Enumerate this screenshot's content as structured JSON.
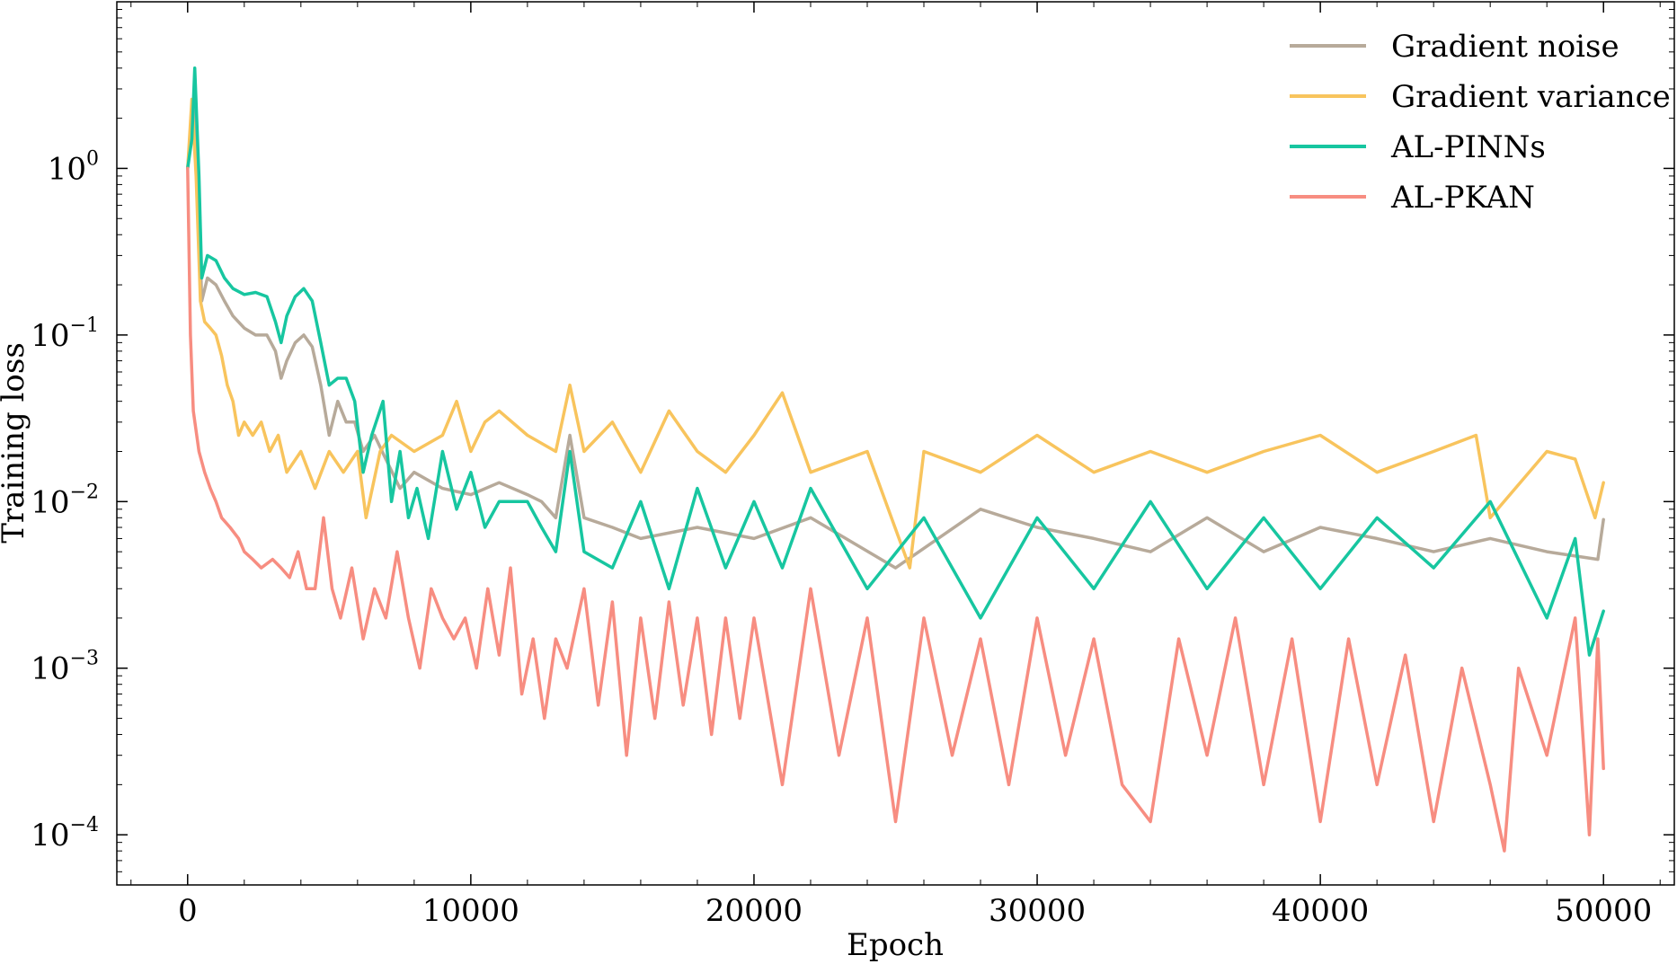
{
  "chart_data": {
    "type": "line",
    "title": "",
    "xlabel": "Epoch",
    "ylabel": "Training loss",
    "xlim": [
      -2500,
      52500
    ],
    "ylim": [
      5e-05,
      10
    ],
    "yscale": "log",
    "grid": false,
    "legend_position": "top-right",
    "x_ticks": [
      0,
      10000,
      20000,
      30000,
      40000,
      50000
    ],
    "x_tick_labels": [
      "0",
      "10000",
      "20000",
      "30000",
      "40000",
      "50000"
    ],
    "y_ticks": [
      1,
      0.1,
      0.01,
      0.001,
      0.0001
    ],
    "y_tick_labels": [
      {
        "base": "10",
        "exp": "0"
      },
      {
        "base": "10",
        "exp": "−1"
      },
      {
        "base": "10",
        "exp": "−2"
      },
      {
        "base": "10",
        "exp": "−3"
      },
      {
        "base": "10",
        "exp": "−4"
      }
    ],
    "series": [
      {
        "name": "Gradient noise",
        "color": "#b7aa9a",
        "points": [
          [
            0,
            1.0
          ],
          [
            200,
            2.4
          ],
          [
            350,
            1.0
          ],
          [
            500,
            0.16
          ],
          [
            700,
            0.22
          ],
          [
            1000,
            0.2
          ],
          [
            1300,
            0.16
          ],
          [
            1600,
            0.13
          ],
          [
            2000,
            0.11
          ],
          [
            2400,
            0.1
          ],
          [
            2800,
            0.1
          ],
          [
            3100,
            0.08
          ],
          [
            3300,
            0.055
          ],
          [
            3500,
            0.07
          ],
          [
            3800,
            0.09
          ],
          [
            4100,
            0.1
          ],
          [
            4400,
            0.085
          ],
          [
            4700,
            0.05
          ],
          [
            5000,
            0.025
          ],
          [
            5300,
            0.04
          ],
          [
            5600,
            0.03
          ],
          [
            5900,
            0.03
          ],
          [
            6200,
            0.02
          ],
          [
            6600,
            0.025
          ],
          [
            7000,
            0.018
          ],
          [
            7500,
            0.012
          ],
          [
            8000,
            0.015
          ],
          [
            9000,
            0.012
          ],
          [
            10000,
            0.011
          ],
          [
            11000,
            0.013
          ],
          [
            12000,
            0.011
          ],
          [
            12500,
            0.01
          ],
          [
            13000,
            0.008
          ],
          [
            13500,
            0.025
          ],
          [
            14000,
            0.008
          ],
          [
            15000,
            0.007
          ],
          [
            16000,
            0.006
          ],
          [
            18000,
            0.007
          ],
          [
            20000,
            0.006
          ],
          [
            22000,
            0.008
          ],
          [
            25000,
            0.004
          ],
          [
            28000,
            0.009
          ],
          [
            30000,
            0.007
          ],
          [
            32000,
            0.006
          ],
          [
            34000,
            0.005
          ],
          [
            36000,
            0.008
          ],
          [
            38000,
            0.005
          ],
          [
            40000,
            0.007
          ],
          [
            42000,
            0.006
          ],
          [
            44000,
            0.005
          ],
          [
            46000,
            0.006
          ],
          [
            48000,
            0.005
          ],
          [
            49800,
            0.0045
          ],
          [
            50000,
            0.0078
          ]
        ]
      },
      {
        "name": "Gradient variance",
        "color": "#f8c45d",
        "points": [
          [
            0,
            1.0
          ],
          [
            150,
            2.6
          ],
          [
            300,
            0.9
          ],
          [
            450,
            0.16
          ],
          [
            600,
            0.12
          ],
          [
            800,
            0.11
          ],
          [
            1000,
            0.1
          ],
          [
            1200,
            0.075
          ],
          [
            1400,
            0.05
          ],
          [
            1600,
            0.04
          ],
          [
            1800,
            0.025
          ],
          [
            2000,
            0.03
          ],
          [
            2300,
            0.025
          ],
          [
            2600,
            0.03
          ],
          [
            2900,
            0.02
          ],
          [
            3200,
            0.025
          ],
          [
            3500,
            0.015
          ],
          [
            4000,
            0.02
          ],
          [
            4500,
            0.012
          ],
          [
            5000,
            0.02
          ],
          [
            5500,
            0.015
          ],
          [
            6000,
            0.02
          ],
          [
            6300,
            0.008
          ],
          [
            6800,
            0.02
          ],
          [
            7200,
            0.025
          ],
          [
            8000,
            0.02
          ],
          [
            9000,
            0.025
          ],
          [
            9500,
            0.04
          ],
          [
            10000,
            0.02
          ],
          [
            10500,
            0.03
          ],
          [
            11000,
            0.035
          ],
          [
            12000,
            0.025
          ],
          [
            13000,
            0.02
          ],
          [
            13500,
            0.05
          ],
          [
            14000,
            0.02
          ],
          [
            15000,
            0.03
          ],
          [
            16000,
            0.015
          ],
          [
            17000,
            0.035
          ],
          [
            18000,
            0.02
          ],
          [
            19000,
            0.015
          ],
          [
            20000,
            0.025
          ],
          [
            21000,
            0.045
          ],
          [
            22000,
            0.015
          ],
          [
            24000,
            0.02
          ],
          [
            25500,
            0.004
          ],
          [
            26000,
            0.02
          ],
          [
            28000,
            0.015
          ],
          [
            30000,
            0.025
          ],
          [
            32000,
            0.015
          ],
          [
            34000,
            0.02
          ],
          [
            36000,
            0.015
          ],
          [
            38000,
            0.02
          ],
          [
            40000,
            0.025
          ],
          [
            42000,
            0.015
          ],
          [
            44000,
            0.02
          ],
          [
            45500,
            0.025
          ],
          [
            46000,
            0.008
          ],
          [
            48000,
            0.02
          ],
          [
            49000,
            0.018
          ],
          [
            49700,
            0.008
          ],
          [
            50000,
            0.013
          ]
        ]
      },
      {
        "name": "AL-PINNs",
        "color": "#17c6a0",
        "points": [
          [
            0,
            1.0
          ],
          [
            150,
            1.5
          ],
          [
            250,
            4.0
          ],
          [
            400,
            0.9
          ],
          [
            500,
            0.22
          ],
          [
            700,
            0.3
          ],
          [
            1000,
            0.28
          ],
          [
            1300,
            0.22
          ],
          [
            1600,
            0.19
          ],
          [
            2000,
            0.175
          ],
          [
            2400,
            0.18
          ],
          [
            2800,
            0.17
          ],
          [
            3100,
            0.12
          ],
          [
            3300,
            0.09
          ],
          [
            3500,
            0.13
          ],
          [
            3800,
            0.17
          ],
          [
            4100,
            0.19
          ],
          [
            4400,
            0.16
          ],
          [
            4700,
            0.09
          ],
          [
            5000,
            0.05
          ],
          [
            5300,
            0.055
          ],
          [
            5600,
            0.055
          ],
          [
            5900,
            0.04
          ],
          [
            6200,
            0.015
          ],
          [
            6500,
            0.025
          ],
          [
            6900,
            0.04
          ],
          [
            7200,
            0.01
          ],
          [
            7500,
            0.02
          ],
          [
            7800,
            0.008
          ],
          [
            8100,
            0.012
          ],
          [
            8500,
            0.006
          ],
          [
            9000,
            0.02
          ],
          [
            9500,
            0.009
          ],
          [
            10000,
            0.015
          ],
          [
            10500,
            0.007
          ],
          [
            11000,
            0.01
          ],
          [
            12000,
            0.01
          ],
          [
            12500,
            0.007
          ],
          [
            13000,
            0.005
          ],
          [
            13500,
            0.02
          ],
          [
            14000,
            0.005
          ],
          [
            15000,
            0.004
          ],
          [
            16000,
            0.01
          ],
          [
            17000,
            0.003
          ],
          [
            18000,
            0.012
          ],
          [
            19000,
            0.004
          ],
          [
            20000,
            0.01
          ],
          [
            21000,
            0.004
          ],
          [
            22000,
            0.012
          ],
          [
            24000,
            0.003
          ],
          [
            26000,
            0.008
          ],
          [
            28000,
            0.002
          ],
          [
            30000,
            0.008
          ],
          [
            32000,
            0.003
          ],
          [
            34000,
            0.01
          ],
          [
            36000,
            0.003
          ],
          [
            38000,
            0.008
          ],
          [
            40000,
            0.003
          ],
          [
            42000,
            0.008
          ],
          [
            44000,
            0.004
          ],
          [
            46000,
            0.01
          ],
          [
            48000,
            0.002
          ],
          [
            49000,
            0.006
          ],
          [
            49500,
            0.0012
          ],
          [
            50000,
            0.0022
          ]
        ]
      },
      {
        "name": "AL-PKAN",
        "color": "#f78d81",
        "points": [
          [
            0,
            1.0
          ],
          [
            100,
            0.1
          ],
          [
            200,
            0.035
          ],
          [
            400,
            0.02
          ],
          [
            600,
            0.015
          ],
          [
            800,
            0.012
          ],
          [
            1000,
            0.01
          ],
          [
            1200,
            0.008
          ],
          [
            1500,
            0.007
          ],
          [
            1800,
            0.006
          ],
          [
            2000,
            0.005
          ],
          [
            2300,
            0.0045
          ],
          [
            2600,
            0.004
          ],
          [
            3000,
            0.0045
          ],
          [
            3300,
            0.004
          ],
          [
            3600,
            0.0035
          ],
          [
            3900,
            0.005
          ],
          [
            4200,
            0.003
          ],
          [
            4500,
            0.003
          ],
          [
            4800,
            0.008
          ],
          [
            5100,
            0.003
          ],
          [
            5400,
            0.002
          ],
          [
            5800,
            0.004
          ],
          [
            6200,
            0.0015
          ],
          [
            6600,
            0.003
          ],
          [
            7000,
            0.002
          ],
          [
            7400,
            0.005
          ],
          [
            7800,
            0.002
          ],
          [
            8200,
            0.001
          ],
          [
            8600,
            0.003
          ],
          [
            9000,
            0.002
          ],
          [
            9400,
            0.0015
          ],
          [
            9800,
            0.002
          ],
          [
            10200,
            0.001
          ],
          [
            10600,
            0.003
          ],
          [
            11000,
            0.0012
          ],
          [
            11400,
            0.004
          ],
          [
            11800,
            0.0007
          ],
          [
            12200,
            0.0015
          ],
          [
            12600,
            0.0005
          ],
          [
            13000,
            0.0015
          ],
          [
            13400,
            0.001
          ],
          [
            14000,
            0.003
          ],
          [
            14500,
            0.0006
          ],
          [
            15000,
            0.0025
          ],
          [
            15500,
            0.0003
          ],
          [
            16000,
            0.002
          ],
          [
            16500,
            0.0005
          ],
          [
            17000,
            0.0025
          ],
          [
            17500,
            0.0006
          ],
          [
            18000,
            0.002
          ],
          [
            18500,
            0.0004
          ],
          [
            19000,
            0.002
          ],
          [
            19500,
            0.0005
          ],
          [
            20000,
            0.002
          ],
          [
            21000,
            0.0002
          ],
          [
            22000,
            0.003
          ],
          [
            23000,
            0.0003
          ],
          [
            24000,
            0.002
          ],
          [
            25000,
            0.00012
          ],
          [
            26000,
            0.002
          ],
          [
            27000,
            0.0003
          ],
          [
            28000,
            0.0015
          ],
          [
            29000,
            0.0002
          ],
          [
            30000,
            0.002
          ],
          [
            31000,
            0.0003
          ],
          [
            32000,
            0.0015
          ],
          [
            33000,
            0.0002
          ],
          [
            34000,
            0.00012
          ],
          [
            35000,
            0.0015
          ],
          [
            36000,
            0.0003
          ],
          [
            37000,
            0.002
          ],
          [
            38000,
            0.0002
          ],
          [
            39000,
            0.0015
          ],
          [
            40000,
            0.00012
          ],
          [
            41000,
            0.0015
          ],
          [
            42000,
            0.0002
          ],
          [
            43000,
            0.0012
          ],
          [
            44000,
            0.00012
          ],
          [
            45000,
            0.001
          ],
          [
            46000,
            0.0002
          ],
          [
            46500,
            8e-05
          ],
          [
            47000,
            0.001
          ],
          [
            48000,
            0.0003
          ],
          [
            49000,
            0.002
          ],
          [
            49500,
            0.0001
          ],
          [
            49800,
            0.0015
          ],
          [
            50000,
            0.00025
          ]
        ]
      }
    ]
  }
}
